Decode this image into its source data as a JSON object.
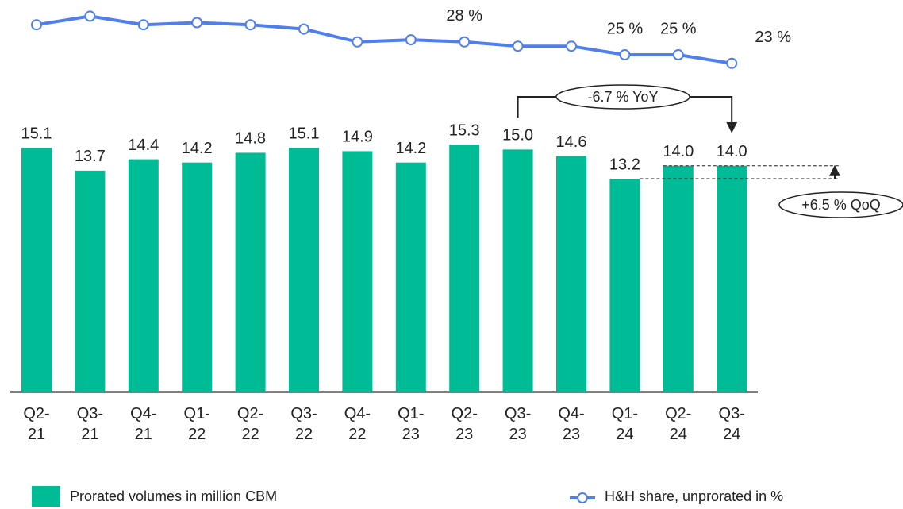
{
  "chart_data": {
    "type": "bar",
    "categories": [
      "Q2-\n21",
      "Q3-\n21",
      "Q4-\n21",
      "Q1-\n22",
      "Q2-\n22",
      "Q3-\n22",
      "Q4-\n22",
      "Q1-\n23",
      "Q2-\n23",
      "Q3-\n23",
      "Q4-\n23",
      "Q1-\n24",
      "Q2-\n24",
      "Q3-\n24"
    ],
    "series": [
      {
        "name": "Prorated volumes in million CBM",
        "type": "bar",
        "color": "#00bc96",
        "values": [
          15.1,
          13.7,
          14.4,
          14.2,
          14.8,
          15.1,
          14.9,
          14.2,
          15.3,
          15.0,
          14.6,
          13.2,
          14.0,
          14.0
        ],
        "value_labels": [
          "15.1",
          "13.7",
          "14.4",
          "14.2",
          "14.8",
          "15.1",
          "14.9",
          "14.2",
          "15.3",
          "15.0",
          "14.6",
          "13.2",
          "14.0",
          "14.0"
        ]
      },
      {
        "name": "H&H share, unprorated in %",
        "type": "line",
        "axis": "y2",
        "color": "#4f7fec",
        "values": [
          32,
          34,
          32,
          32.5,
          32,
          31,
          28,
          28.5,
          28,
          27,
          27,
          25,
          25,
          23
        ],
        "value_labels": [
          null,
          null,
          null,
          null,
          null,
          null,
          null,
          null,
          "28 %",
          null,
          null,
          "25 %",
          "25 %",
          "23 %"
        ]
      }
    ],
    "ylim": [
      0,
      16
    ],
    "y2lim": [
      20,
      35
    ],
    "annotations": [
      "-6.7 % YoY",
      "+6.5 % QoQ"
    ]
  }
}
